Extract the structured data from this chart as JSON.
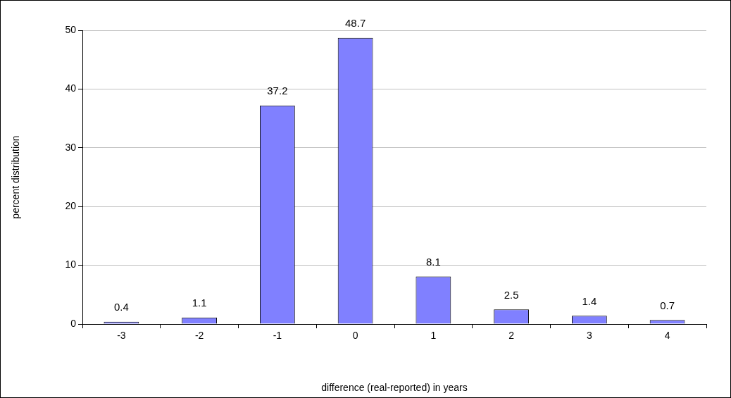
{
  "chart_data": {
    "type": "bar",
    "xlabel": "difference (real-reported) in years",
    "ylabel": "percent distribution",
    "categories": [
      "-3",
      "-2",
      "-1",
      "0",
      "1",
      "2",
      "3",
      "4"
    ],
    "values": [
      0.4,
      1.1,
      37.2,
      48.7,
      8.1,
      2.5,
      1.4,
      0.7
    ],
    "color": "#8080ff",
    "ylim": [
      0,
      50
    ],
    "yticks": [
      0,
      10,
      20,
      30,
      40,
      50
    ],
    "grid": "y",
    "data_labels": true,
    "legend": false
  }
}
